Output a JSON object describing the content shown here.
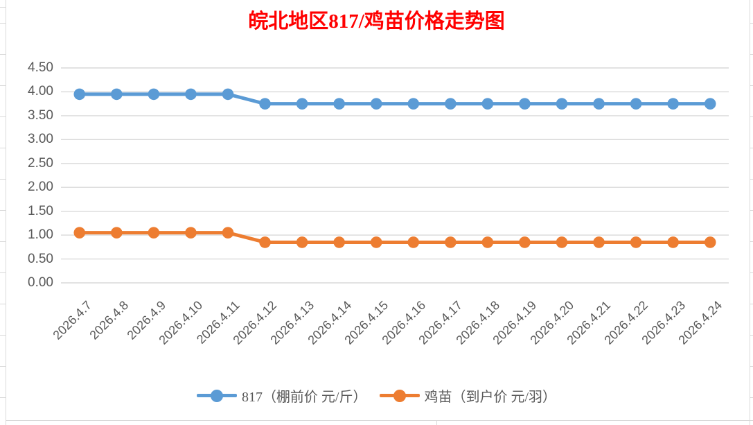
{
  "title": {
    "text": "皖北地区817/鸡苗价格走势图",
    "color": "#FF0000"
  },
  "chart_data": {
    "type": "line",
    "title": "皖北地区817/鸡苗价格走势图",
    "categories": [
      "2026.4.7",
      "2026.4.8",
      "2026.4.9",
      "2026.4.10",
      "2026.4.11",
      "2026.4.12",
      "2026.4.13",
      "2026.4.14",
      "2026.4.15",
      "2026.4.16",
      "2026.4.17",
      "2026.4.18",
      "2026.4.19",
      "2026.4.20",
      "2026.4.21",
      "2026.4.22",
      "2026.4.23",
      "2026.4.24"
    ],
    "series": [
      {
        "name": "817（棚前价 元/斤）",
        "color": "#5B9BD5",
        "values": [
          3.95,
          3.95,
          3.95,
          3.95,
          3.95,
          3.75,
          3.75,
          3.75,
          3.75,
          3.75,
          3.75,
          3.75,
          3.75,
          3.75,
          3.75,
          3.75,
          3.75,
          3.75
        ]
      },
      {
        "name": "鸡苗（到户价 元/羽）",
        "color": "#ED7D31",
        "values": [
          1.05,
          1.05,
          1.05,
          1.05,
          1.05,
          0.85,
          0.85,
          0.85,
          0.85,
          0.85,
          0.85,
          0.85,
          0.85,
          0.85,
          0.85,
          0.85,
          0.85,
          0.85
        ]
      }
    ],
    "xlabel": "",
    "ylabel": "",
    "ylim": [
      0,
      4.5
    ],
    "ytick_step": 0.5,
    "ytick_labels": [
      "0.00",
      "0.50",
      "1.00",
      "1.50",
      "2.00",
      "2.50",
      "3.00",
      "3.50",
      "4.00",
      "4.50"
    ],
    "grid": true,
    "legend_position": "bottom",
    "axis_text_color": "#595959",
    "gridline_color": "#D9D9D9"
  }
}
